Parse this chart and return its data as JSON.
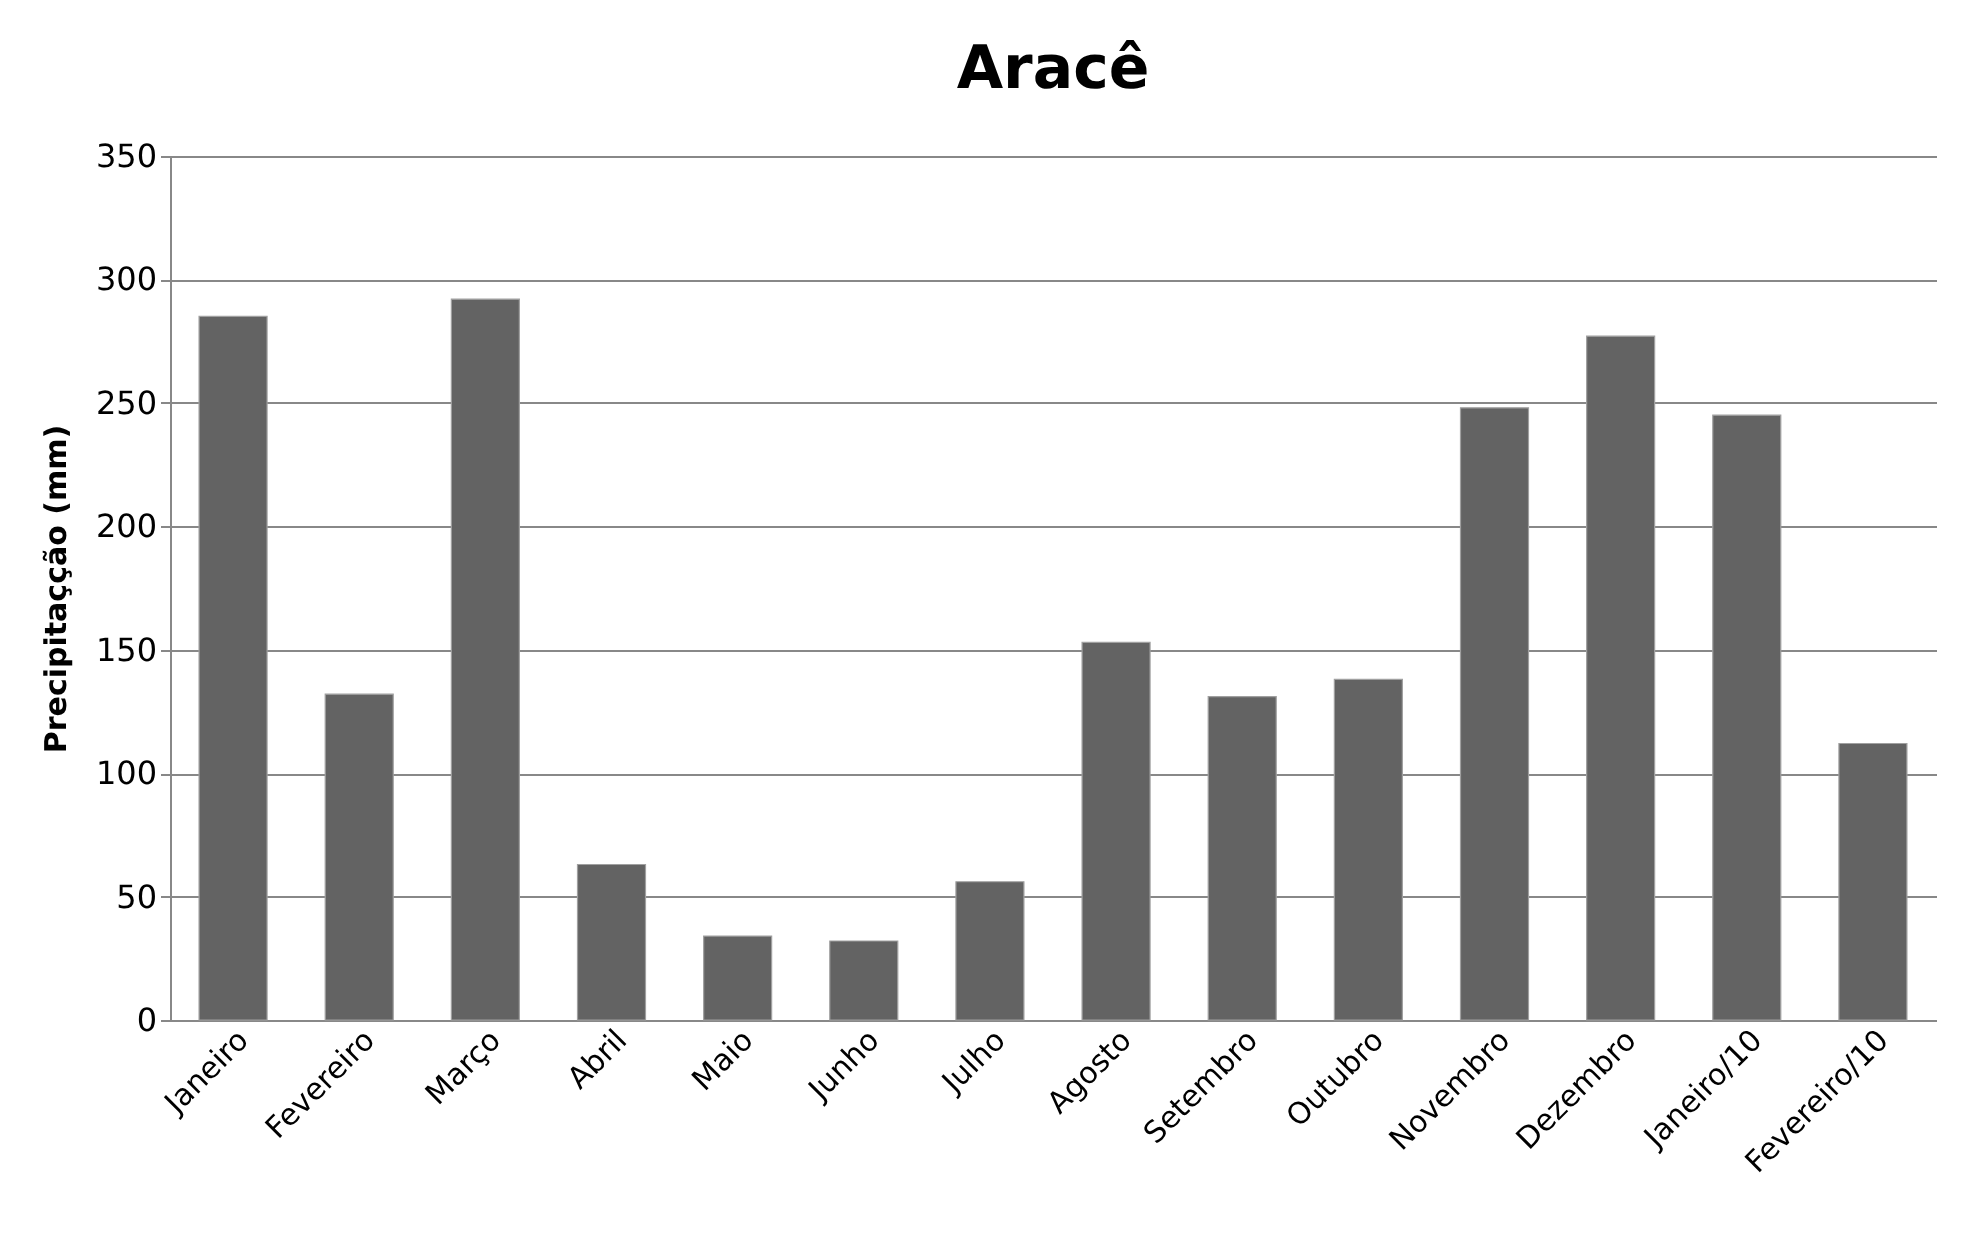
{
  "chart_data": {
    "type": "bar",
    "title": "Aracê",
    "ylabel": "Precipitaçção (mm)",
    "categories": [
      "Janeiro",
      "Fevereiro",
      "Março",
      "Abril",
      "Maio",
      "Junho",
      "Julho",
      "Agosto",
      "Setembro",
      "Outubro",
      "Novembro",
      "Dezembro",
      "Janeiro/10",
      "Fevereiro/10"
    ],
    "values": [
      285,
      132,
      292,
      63,
      34,
      32,
      56,
      153,
      131,
      138,
      248,
      277,
      245,
      112
    ],
    "color": "#636363",
    "ylim": [
      0,
      350
    ],
    "yticks": [
      0,
      50,
      100,
      150,
      200,
      250,
      300,
      350
    ],
    "grid": "y"
  }
}
